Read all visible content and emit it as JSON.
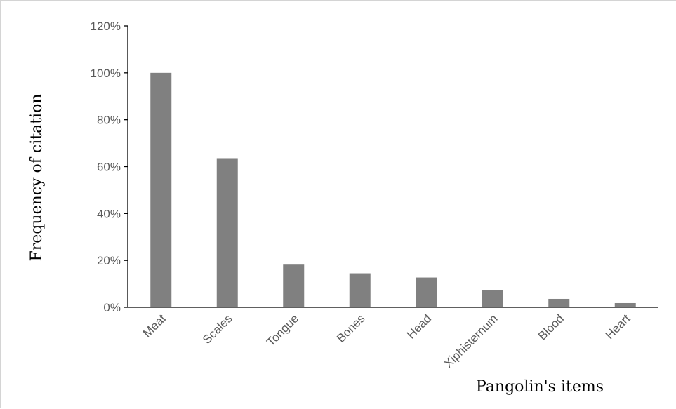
{
  "chart_data": {
    "type": "bar",
    "title": "",
    "xlabel": "Pangolin's items",
    "ylabel": "Frequency of citation",
    "categories": [
      "Meat",
      "Scales",
      "Tongue",
      "Bones",
      "Head",
      "Xiphisternum",
      "Blood",
      "Heart"
    ],
    "series": [
      {
        "values": [
          100,
          63.6,
          18.2,
          14.5,
          12.7,
          7.3,
          3.6,
          1.8
        ]
      }
    ],
    "ylim": [
      0,
      120
    ],
    "yticks": [
      0,
      20,
      40,
      60,
      80,
      100,
      120
    ],
    "ytick_suffix": "%",
    "grid": false,
    "legend": "none",
    "bar_color": "#808080",
    "axis_color": "#000000",
    "tick_label_color": "#595959"
  }
}
